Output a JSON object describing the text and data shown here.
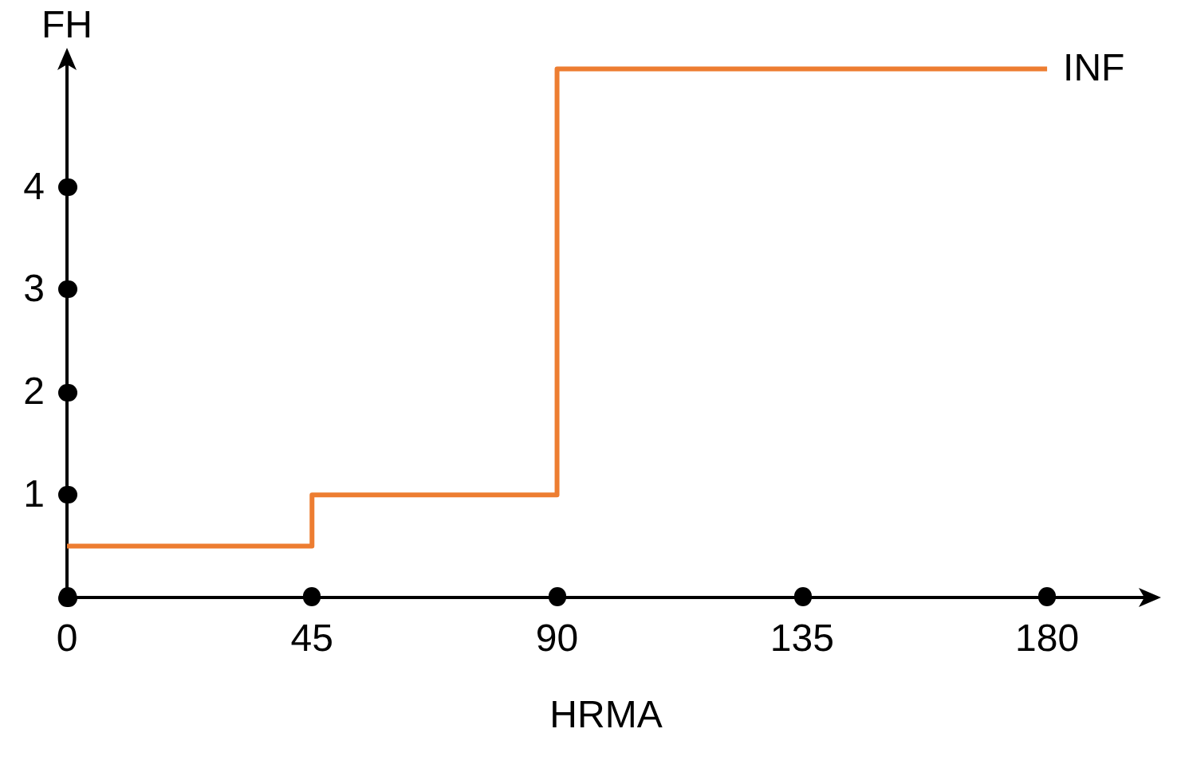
{
  "chart_data": {
    "type": "step",
    "xlabel": "HRMA",
    "ylabel": "FH",
    "x": [
      0,
      45,
      90,
      180
    ],
    "series": [
      {
        "color": "#ed7d31",
        "values": [
          0.5,
          1,
          5.15,
          5.15
        ]
      }
    ],
    "xlim": [
      0,
      198
    ],
    "ylim": [
      0,
      5.2
    ],
    "xticks": [
      0,
      45,
      90,
      135,
      180
    ],
    "yticks": [
      {
        "value": 0,
        "label": null
      },
      1,
      2,
      3,
      4
    ],
    "annotations": [
      {
        "text": "INF",
        "x": 180,
        "y": 5.15
      }
    ],
    "grid": false,
    "marker": "none",
    "line_style": "solid"
  }
}
